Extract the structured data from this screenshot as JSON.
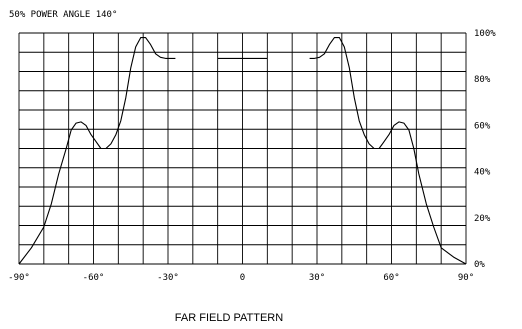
{
  "chart_data": {
    "type": "line",
    "title": "50% POWER ANGLE 140°",
    "caption": "FAR FIELD PATTERN",
    "xlim": [
      -90,
      90
    ],
    "ylim": [
      0,
      100
    ],
    "x_ticks": [
      -90,
      -60,
      -30,
      0,
      30,
      60,
      90
    ],
    "x_tick_labels": [
      "-90°",
      "-60°",
      "-30°",
      "0",
      "30°",
      "60°",
      "90°"
    ],
    "y_ticks": [
      0,
      20,
      40,
      60,
      80,
      100
    ],
    "y_tick_labels": [
      "0%",
      "20%",
      "40%",
      "60%",
      "80%",
      "100%"
    ],
    "grid": true,
    "series": [
      {
        "color": "#000000",
        "segments": [
          {
            "x": [
              -90,
              -85,
              -80,
              -77,
              -74,
              -71,
              -69,
              -67,
              -65,
              -63,
              -61,
              -59,
              -57,
              -55,
              -53,
              -51,
              -49,
              -47,
              -45,
              -43,
              -41,
              -39,
              -37,
              -35,
              -33,
              -31,
              -29,
              -27
            ],
            "y": [
              0,
              7,
              16,
              26,
              39,
              50,
              58,
              61,
              61.5,
              60,
              56,
              53,
              50,
              50,
              52,
              56,
              62,
              72,
              85,
              94,
              98,
              98,
              95,
              91,
              89.5,
              89,
              89,
              89
            ]
          },
          {
            "x": [
              -10,
              10
            ],
            "y": [
              89,
              89
            ]
          },
          {
            "x": [
              27,
              29,
              31,
              33,
              35,
              37,
              39,
              41,
              43,
              45,
              47,
              49,
              51,
              53,
              55,
              57,
              59,
              61,
              63,
              65,
              67,
              69,
              71,
              74,
              77,
              80,
              85,
              90
            ],
            "y": [
              89,
              89,
              89.5,
              91,
              95,
              98,
              98,
              94,
              85,
              72,
              62,
              56,
              52,
              50,
              50,
              53,
              56,
              60,
              61.5,
              61,
              58,
              50,
              39,
              26,
              16,
              7,
              3,
              0
            ]
          }
        ]
      }
    ]
  }
}
